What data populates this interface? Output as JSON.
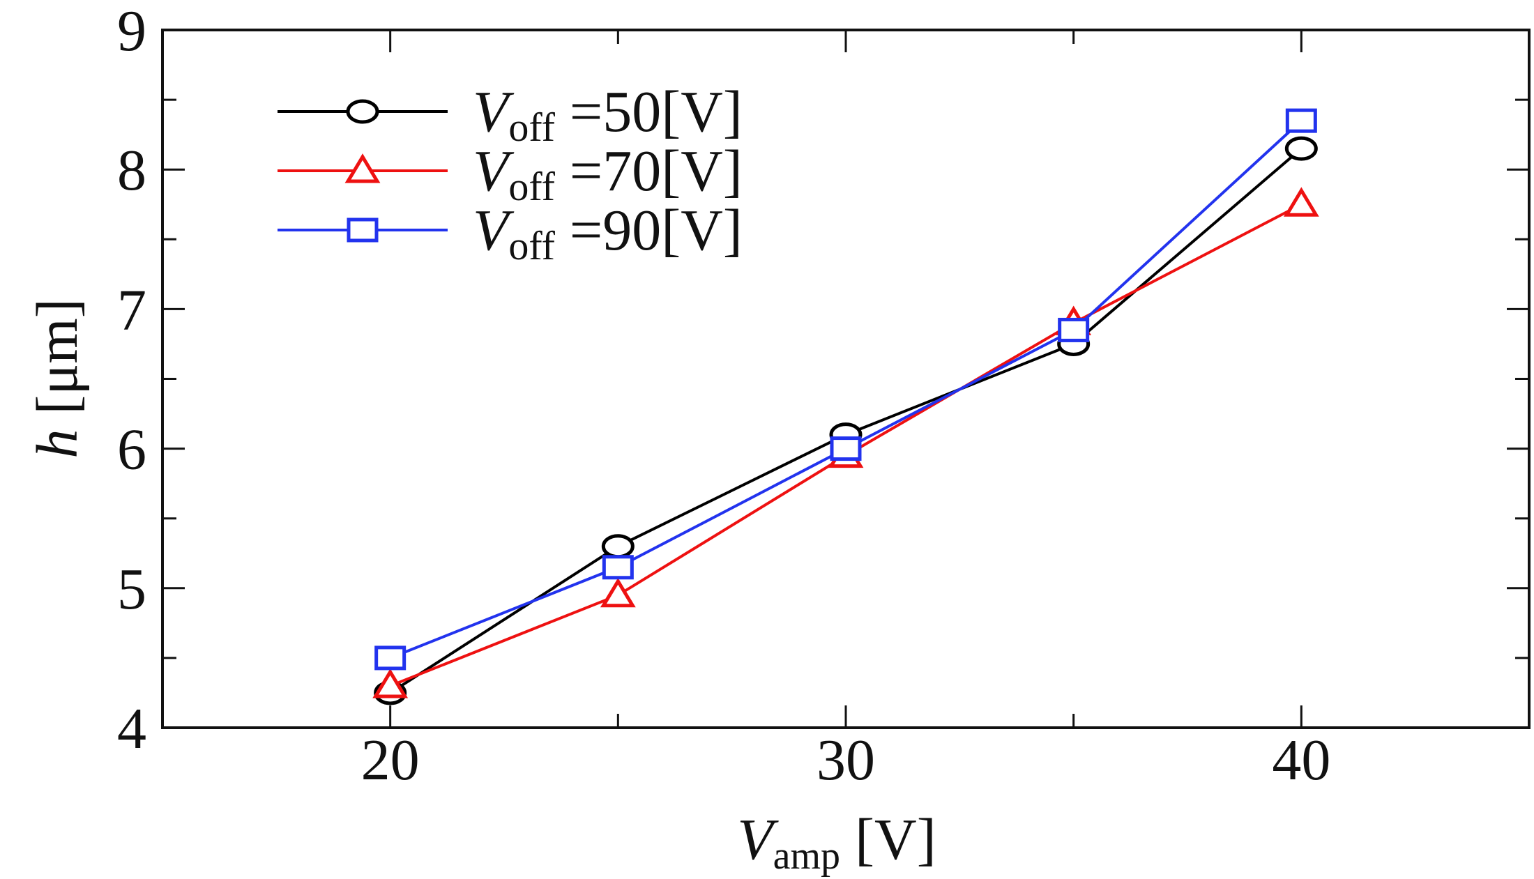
{
  "chart_data": {
    "type": "line",
    "title": "",
    "x": [
      20,
      25,
      30,
      35,
      40
    ],
    "xlim": [
      15,
      45
    ],
    "ylim": [
      4,
      9
    ],
    "xticks": [
      20,
      30,
      40
    ],
    "xticks_minor": [
      25,
      35
    ],
    "yticks": [
      4,
      5,
      6,
      7,
      8,
      9
    ],
    "yticks_minor": [
      4.5,
      5.5,
      6.5,
      7.5,
      8.5
    ],
    "xlabel": {
      "symbol": "V",
      "subscript": "amp",
      "unit": " [V]"
    },
    "ylabel": {
      "symbol": "h",
      "unit": " [μm]"
    },
    "legend_position": "top-left",
    "series": [
      {
        "name": "Voff=50[V]",
        "legend": {
          "symbol": "V",
          "subscript": "off",
          "rest": " =50[V]"
        },
        "color": "#000000",
        "marker": "circle",
        "values": [
          4.25,
          5.3,
          6.1,
          6.75,
          8.15
        ]
      },
      {
        "name": "Voff=70[V]",
        "legend": {
          "symbol": "V",
          "subscript": "off",
          "rest": " =70[V]"
        },
        "color": "#ee1111",
        "marker": "triangle",
        "values": [
          4.3,
          4.95,
          5.95,
          6.9,
          7.75
        ]
      },
      {
        "name": "Voff=90[V]",
        "legend": {
          "symbol": "V",
          "subscript": "off",
          "rest": " =90[V]"
        },
        "color": "#2233ee",
        "marker": "square",
        "values": [
          4.5,
          5.15,
          6.0,
          6.85,
          8.35
        ]
      }
    ]
  }
}
